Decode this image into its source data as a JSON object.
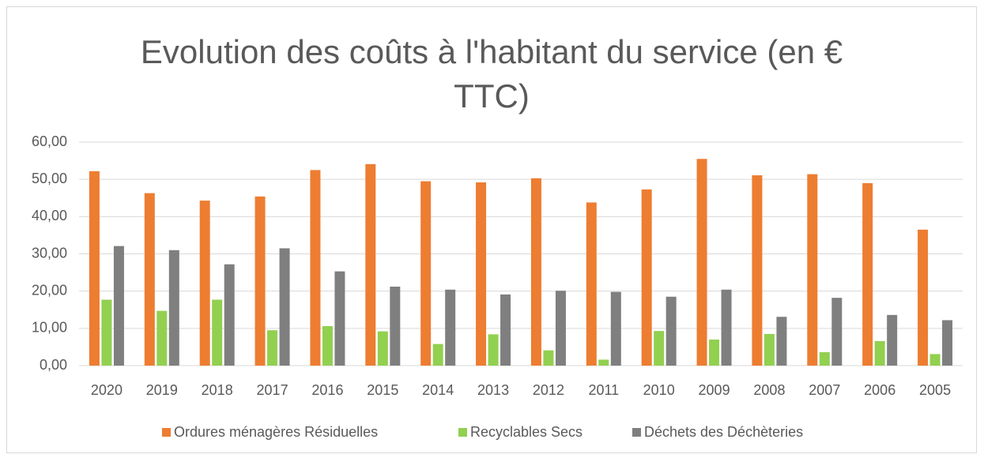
{
  "chart_data": {
    "type": "bar",
    "title": "Evolution des coûts à l'habitant du service  (en € TTC)",
    "categories": [
      "2020",
      "2019",
      "2018",
      "2017",
      "2016",
      "2015",
      "2014",
      "2013",
      "2012",
      "2011",
      "2010",
      "2009",
      "2008",
      "2007",
      "2006",
      "2005"
    ],
    "series": [
      {
        "name": "Ordures ménagères Résiduelles",
        "color": "#ed7d31",
        "values": [
          52.2,
          46.3,
          44.3,
          45.4,
          52.5,
          54.1,
          49.5,
          49.2,
          50.3,
          43.8,
          47.3,
          55.5,
          51.1,
          51.4,
          49.0,
          36.5
        ]
      },
      {
        "name": "Recyclables Secs",
        "color": "#92d050",
        "values": [
          17.7,
          14.7,
          17.7,
          9.5,
          10.6,
          9.2,
          5.8,
          8.4,
          4.1,
          1.6,
          9.3,
          7.0,
          8.5,
          3.6,
          6.6,
          3.1
        ]
      },
      {
        "name": "Déchets des Déchèteries",
        "color": "#7f7f7f",
        "values": [
          32.1,
          31.0,
          27.2,
          31.5,
          25.3,
          21.2,
          20.4,
          19.1,
          20.1,
          19.8,
          18.5,
          20.4,
          13.1,
          18.2,
          13.6,
          12.2
        ]
      }
    ],
    "ylim": [
      0,
      60
    ],
    "yticks": [
      {
        "value": 0,
        "label": "0,00"
      },
      {
        "value": 10,
        "label": "10,00"
      },
      {
        "value": 20,
        "label": "20,00"
      },
      {
        "value": 30,
        "label": "30,00"
      },
      {
        "value": 40,
        "label": "40,00"
      },
      {
        "value": 50,
        "label": "50,00"
      },
      {
        "value": 60,
        "label": "60,00"
      }
    ],
    "grid": true,
    "legend": "bottom"
  }
}
